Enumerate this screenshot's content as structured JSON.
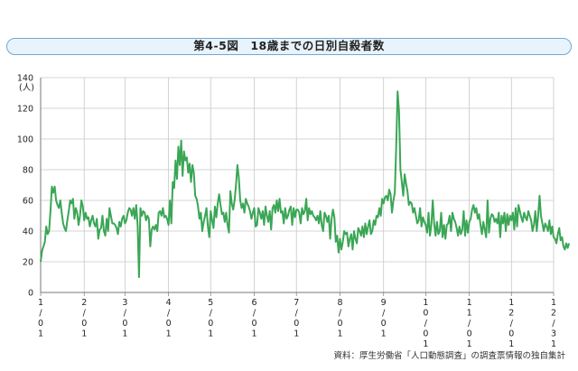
{
  "title": "第4-5図　18歳までの日別自殺者数",
  "source": "資料：厚生労働省「人口動態調査」の調査票情報の独自集計",
  "chart_data": {
    "type": "line",
    "title": "第4-5図　18歳までの日別自殺者数",
    "ylabel": "(人)",
    "ylim": [
      0,
      140
    ],
    "yticks": [
      0,
      20,
      40,
      60,
      80,
      100,
      120,
      140
    ],
    "xlim": [
      1,
      366
    ],
    "grid": true,
    "legend": "none",
    "series_color": "#3aa655",
    "x_ticks": [
      {
        "day": 1,
        "label": [
          "1"
        ]
      },
      {
        "day": 32,
        "label": [
          "2",
          "/",
          "0",
          "1"
        ]
      },
      {
        "day": 61,
        "label": [
          "3",
          "/",
          "0",
          "1"
        ]
      },
      {
        "day": 92,
        "label": [
          "4",
          "/",
          "0",
          "1"
        ]
      },
      {
        "day": 122,
        "label": [
          "5",
          "/",
          "0",
          "1"
        ]
      },
      {
        "day": 153,
        "label": [
          "6",
          "/",
          "0",
          "1"
        ]
      },
      {
        "day": 183,
        "label": [
          "7",
          "/",
          "0",
          "1"
        ]
      },
      {
        "day": 214,
        "label": [
          "8",
          "/",
          "0",
          "1"
        ]
      },
      {
        "day": 245,
        "label": [
          "9",
          "/",
          "0",
          "1"
        ]
      },
      {
        "day": 275,
        "label": [
          "1",
          "0",
          "/",
          "0",
          "1"
        ]
      },
      {
        "day": 306,
        "label": [
          "1",
          "1",
          "/",
          "0",
          "1"
        ]
      },
      {
        "day": 336,
        "label": [
          "1",
          "2",
          "/",
          "0",
          "1"
        ]
      },
      {
        "day": 366,
        "label": [
          "1",
          "2",
          "/",
          "3",
          "1"
        ]
      }
    ],
    "x_first_label_parts": [
      "1",
      "/",
      "0",
      "1"
    ],
    "series": [
      {
        "values": [
          20,
          27,
          30,
          33,
          43,
          38,
          40,
          53,
          69,
          65,
          69,
          60,
          57,
          55,
          60,
          52,
          45,
          42,
          40,
          47,
          53,
          60,
          58,
          61,
          48,
          55,
          52,
          44,
          50,
          60,
          56,
          47,
          52,
          48,
          49,
          43,
          47,
          50,
          45,
          43,
          48,
          35,
          41,
          42,
          50,
          40,
          37,
          48,
          40,
          55,
          50,
          45,
          45,
          44,
          42,
          38,
          46,
          43,
          48,
          50,
          45,
          47,
          52,
          55,
          54,
          50,
          55,
          48,
          57,
          44,
          10,
          55,
          50,
          53,
          52,
          47,
          50,
          48,
          30,
          41,
          43,
          41,
          44,
          40,
          52,
          53,
          50,
          55,
          49,
          50,
          48,
          44,
          60,
          45,
          72,
          68,
          86,
          74,
          95,
          83,
          99,
          76,
          92,
          86,
          88,
          78,
          84,
          72,
          83,
          78,
          63,
          61,
          56,
          48,
          52,
          40,
          46,
          50,
          55,
          43,
          36,
          53,
          47,
          42,
          56,
          49,
          58,
          64,
          57,
          51,
          52,
          46,
          52,
          44,
          39,
          66,
          58,
          54,
          60,
          70,
          83,
          75,
          60,
          55,
          58,
          52,
          61,
          58,
          56,
          53,
          48,
          52,
          55,
          43,
          44,
          55,
          52,
          48,
          53,
          44,
          56,
          50,
          46,
          53,
          41,
          55,
          57,
          52,
          60,
          53,
          61,
          52,
          53,
          45,
          55,
          48,
          50,
          54,
          56,
          44,
          55,
          49,
          54,
          54,
          52,
          45,
          55,
          51,
          53,
          61,
          47,
          55,
          51,
          53,
          50,
          49,
          47,
          50,
          45,
          53,
          44,
          40,
          52,
          50,
          46,
          50,
          35,
          48,
          54,
          49,
          33,
          37,
          26,
          35,
          28,
          33,
          40,
          38,
          39,
          30,
          35,
          38,
          28,
          40,
          35,
          32,
          42,
          40,
          37,
          43,
          36,
          45,
          38,
          43,
          47,
          38,
          40,
          47,
          44,
          50,
          49,
          55,
          50,
          61,
          58,
          62,
          63,
          60,
          67,
          64,
          52,
          60,
          65,
          95,
          131,
          118,
          80,
          72,
          63,
          77,
          71,
          66,
          57,
          59,
          58,
          52,
          55,
          50,
          45,
          47,
          55,
          43,
          49,
          46,
          44,
          39,
          52,
          37,
          44,
          60,
          45,
          37,
          46,
          38,
          40,
          52,
          36,
          44,
          35,
          44,
          45,
          50,
          40,
          52,
          48,
          46,
          42,
          37,
          43,
          38,
          41,
          53,
          37,
          47,
          39,
          46,
          48,
          54,
          57,
          52,
          55,
          48,
          51,
          44,
          38,
          46,
          41,
          36,
          60,
          39,
          48,
          51,
          50,
          46,
          48,
          45,
          52,
          36,
          50,
          45,
          52,
          40,
          51,
          44,
          50,
          47,
          52,
          41,
          55,
          43,
          57,
          53,
          49,
          46,
          52,
          49,
          47,
          53,
          50,
          47,
          40,
          44,
          53,
          40,
          50,
          63,
          50,
          45,
          40,
          45,
          43,
          40,
          47,
          38,
          43,
          36,
          35,
          32,
          38,
          42,
          34,
          36,
          30,
          28,
          32,
          29,
          32
        ]
      }
    ]
  }
}
